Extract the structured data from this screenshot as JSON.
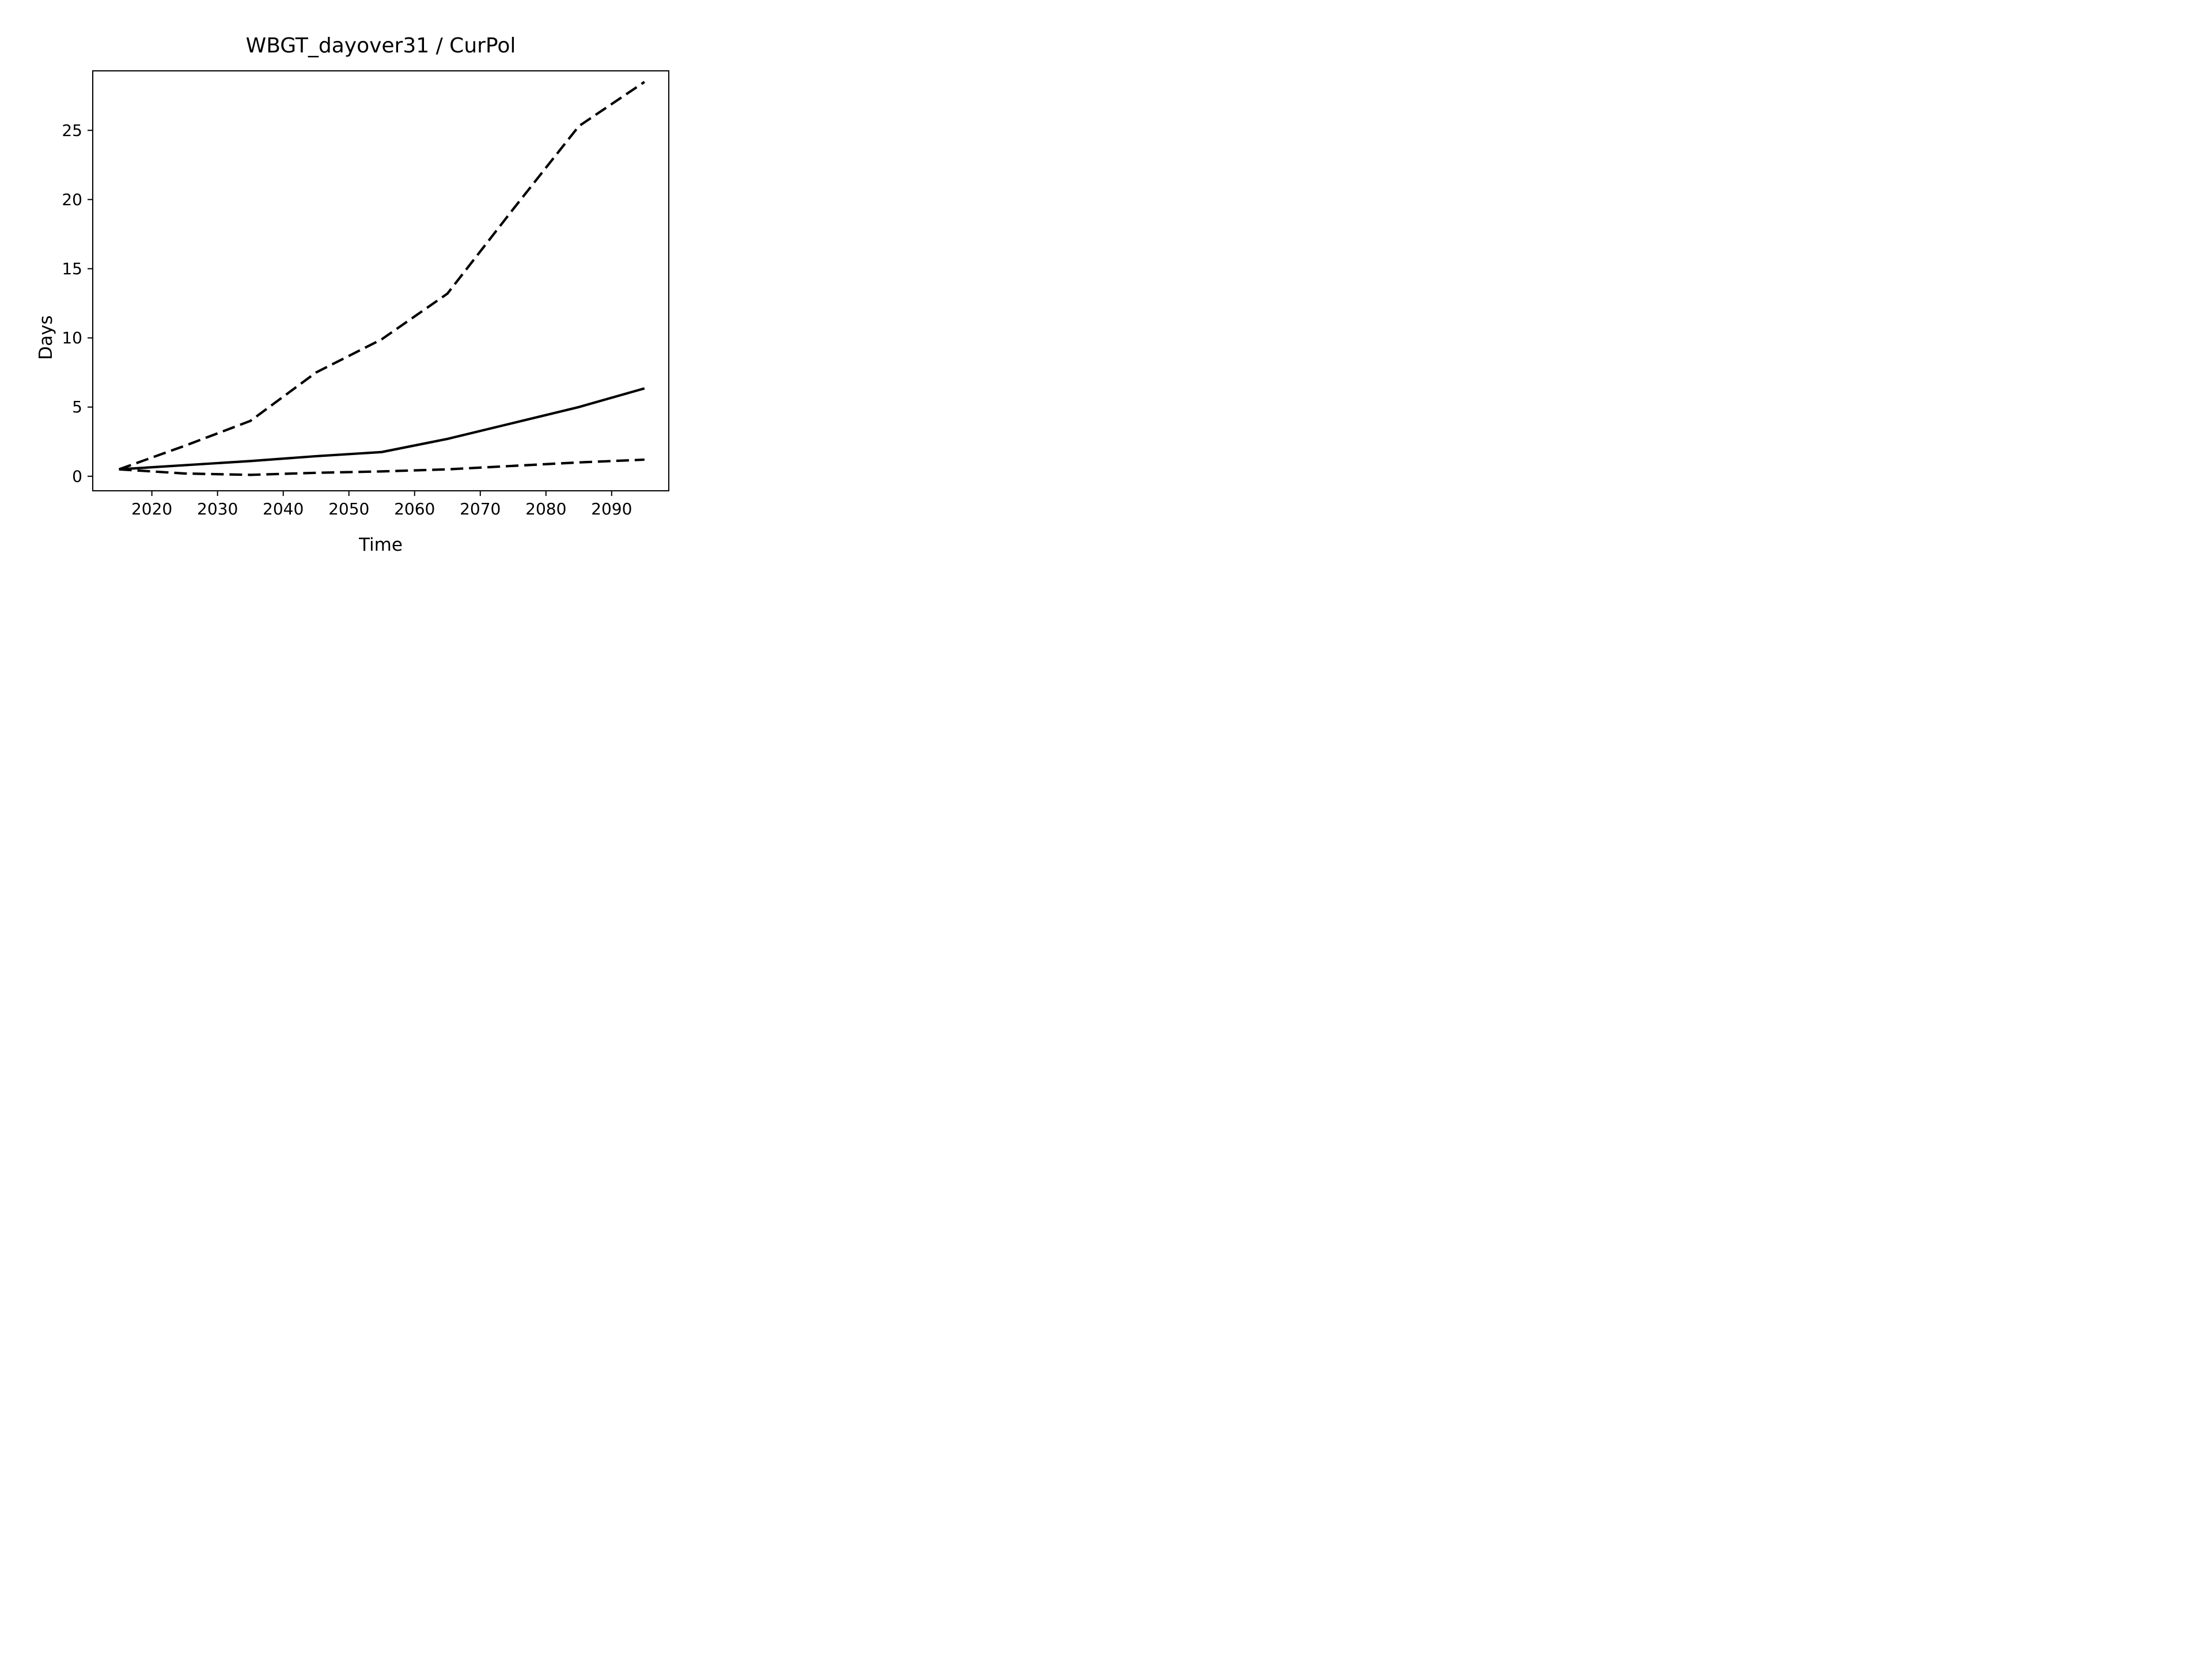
{
  "title": "WBGT_dayover31 / CurPol",
  "xlabel": "Time",
  "ylabel": "Days",
  "colors": {
    "foreground": "#000000",
    "background": "#ffffff"
  },
  "chart_data": {
    "type": "line",
    "title": "WBGT_dayover31 / CurPol",
    "xlabel": "Time",
    "ylabel": "Days",
    "x": [
      2015,
      2025,
      2035,
      2045,
      2055,
      2065,
      2075,
      2085,
      2095
    ],
    "series": [
      {
        "name": "upper-dashed-line",
        "style": "dashed",
        "values": [
          0.5,
          2.2,
          4.0,
          7.5,
          9.9,
          13.2,
          19.3,
          25.3,
          28.5
        ]
      },
      {
        "name": "solid-line",
        "style": "solid",
        "values": [
          0.5,
          0.8,
          1.1,
          1.45,
          1.75,
          2.7,
          3.85,
          5.0,
          6.35
        ]
      },
      {
        "name": "lower-dashed-line",
        "style": "dashed",
        "values": [
          0.5,
          0.2,
          0.1,
          0.25,
          0.35,
          0.5,
          0.75,
          1.0,
          1.2
        ]
      }
    ],
    "xlim": [
      2011,
      2098.7
    ],
    "ylim": [
      -1.05,
      29.3
    ],
    "xticks": [
      2020,
      2030,
      2040,
      2050,
      2060,
      2070,
      2080,
      2090
    ],
    "yticks": [
      0,
      5,
      10,
      15,
      20,
      25
    ],
    "grid": false,
    "legend": "none"
  }
}
